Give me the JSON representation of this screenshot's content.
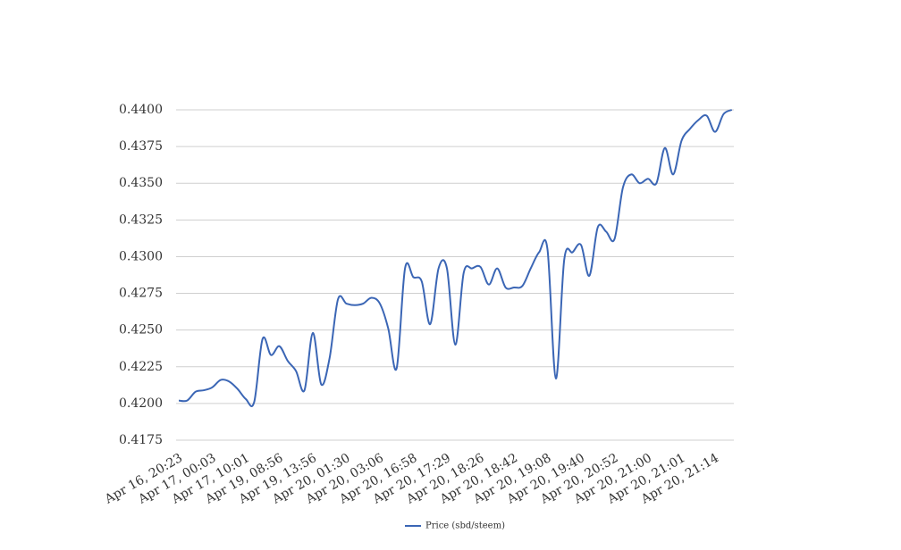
{
  "chart_data": {
    "type": "line",
    "categories": [
      "Apr 16, 20:23",
      null,
      null,
      null,
      "Apr 17, 00:03",
      null,
      null,
      null,
      "Apr 17, 10:01",
      null,
      null,
      null,
      "Apr 19, 08:56",
      null,
      null,
      null,
      "Apr 19, 13:56",
      null,
      null,
      null,
      "Apr 20, 01:30",
      null,
      null,
      null,
      "Apr 20, 03:06",
      null,
      null,
      null,
      "Apr 20, 16:58",
      null,
      null,
      null,
      "Apr 20, 17:29",
      null,
      null,
      null,
      "Apr 20, 18:26",
      null,
      null,
      null,
      "Apr 20, 18:42",
      null,
      null,
      null,
      "Apr 20, 19:08",
      null,
      null,
      null,
      "Apr 20, 19:40",
      null,
      null,
      null,
      "Apr 20, 20:52",
      null,
      null,
      null,
      "Apr 20, 21:00",
      null,
      null,
      null,
      "Apr 20, 21:01",
      null,
      null,
      null,
      "Apr 20, 21:14",
      null,
      null
    ],
    "series": [
      {
        "name": "Price (sbd/steem)",
        "color": "#3b66b5",
        "values": [
          0.4202,
          0.4202,
          0.4208,
          0.4209,
          0.4211,
          0.4216,
          0.4215,
          0.421,
          0.4203,
          0.4201,
          0.4244,
          0.4233,
          0.4239,
          0.4229,
          0.4222,
          0.4209,
          0.4248,
          0.4213,
          0.4231,
          0.4271,
          0.4268,
          0.4267,
          0.4268,
          0.4272,
          0.4268,
          0.4251,
          0.4224,
          0.4292,
          0.4286,
          0.4283,
          0.4254,
          0.4292,
          0.4292,
          0.424,
          0.4289,
          0.4292,
          0.4293,
          0.4281,
          0.4292,
          0.4279,
          0.4279,
          0.428,
          0.4292,
          0.4303,
          0.4305,
          0.4217,
          0.4298,
          0.4303,
          0.4308,
          0.4287,
          0.432,
          0.4317,
          0.4312,
          0.4347,
          0.4356,
          0.435,
          0.4353,
          0.435,
          0.4374,
          0.4356,
          0.4379,
          0.4387,
          0.4393,
          0.4396,
          0.4385,
          0.4397,
          0.44
        ]
      }
    ],
    "ylim": [
      0.4175,
      0.44
    ],
    "yticks": [
      0.4175,
      {
        "value": 0.42,
        "label": "0.4200"
      },
      0.4225,
      {
        "value": 0.425,
        "label": "0.4250"
      },
      0.4275,
      {
        "value": 0.43,
        "label": "0.4300"
      },
      0.4325,
      {
        "value": 0.435,
        "label": "0.4350"
      },
      0.4375,
      {
        "value": 0.44,
        "label": "0.4400"
      }
    ],
    "grid": true,
    "legend": "bottom"
  }
}
